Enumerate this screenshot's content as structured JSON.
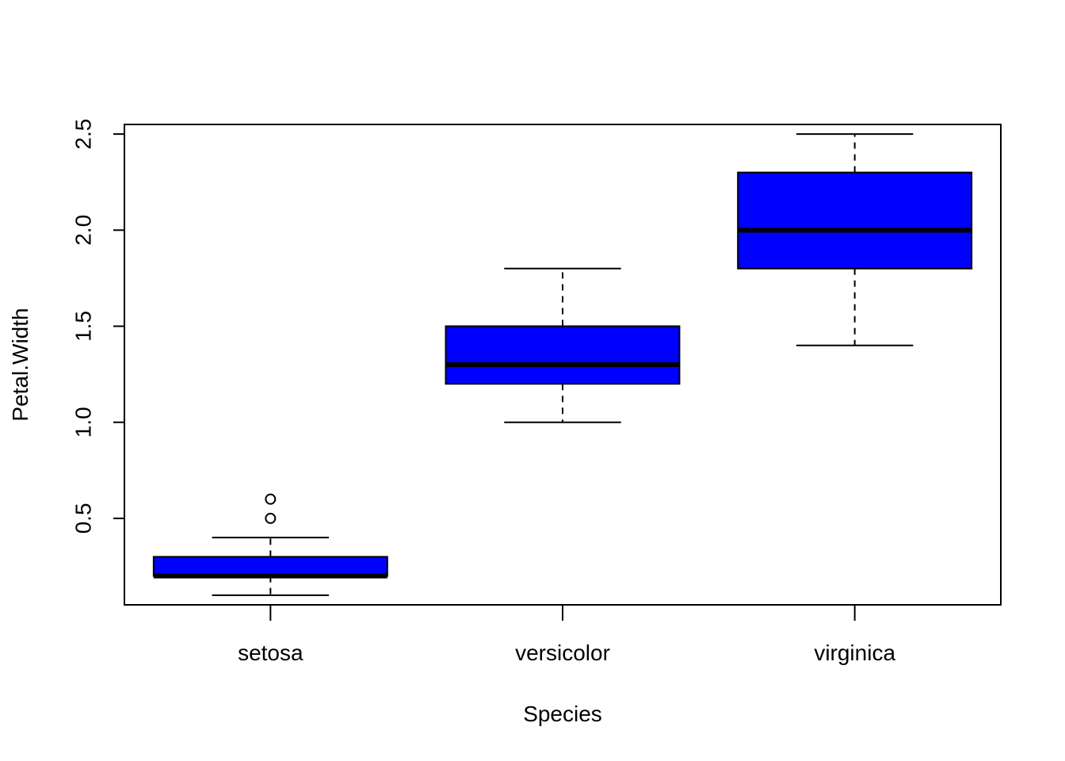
{
  "chart_data": {
    "type": "boxplot",
    "title": "",
    "xlabel": "Species",
    "ylabel": "Petal.Width",
    "ylim": [
      0.05,
      2.55
    ],
    "yticks": [
      "0.5",
      "1.0",
      "1.5",
      "2.0",
      "2.5"
    ],
    "ytick_values": [
      0.5,
      1.0,
      1.5,
      2.0,
      2.5
    ],
    "categories": [
      "setosa",
      "versicolor",
      "virginica"
    ],
    "fill_color": "#0000ff",
    "boxes": [
      {
        "category": "setosa",
        "whisker_low": 0.1,
        "q1": 0.2,
        "median": 0.2,
        "q3": 0.3,
        "whisker_high": 0.4,
        "outliers": [
          0.5,
          0.6
        ]
      },
      {
        "category": "versicolor",
        "whisker_low": 1.0,
        "q1": 1.2,
        "median": 1.3,
        "q3": 1.5,
        "whisker_high": 1.8,
        "outliers": []
      },
      {
        "category": "virginica",
        "whisker_low": 1.4,
        "q1": 1.8,
        "median": 2.0,
        "q3": 2.3,
        "whisker_high": 2.5,
        "outliers": []
      }
    ],
    "grid": false,
    "legend": "none"
  }
}
